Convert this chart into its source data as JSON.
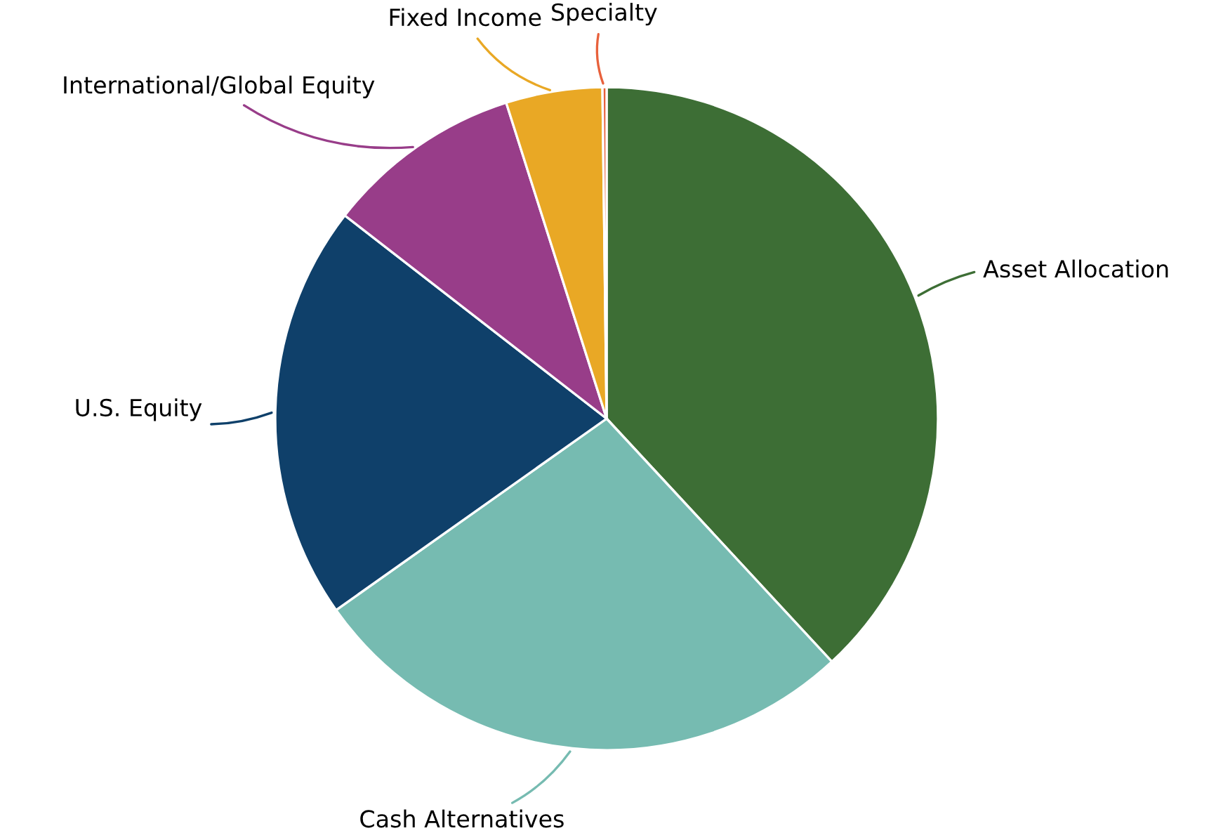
{
  "chart_data": {
    "type": "pie",
    "categories": [
      "Asset Allocation",
      "Cash Alternatives",
      "U.S. Equity",
      "International/Global Equity",
      "Fixed Income",
      "Specialty"
    ],
    "values": [
      38.1,
      27.1,
      20.3,
      9.6,
      4.7,
      0.2
    ],
    "colors": [
      "#3d6e35",
      "#76bbb1",
      "#0f406a",
      "#983d89",
      "#e9a825",
      "#e8613c"
    ]
  }
}
